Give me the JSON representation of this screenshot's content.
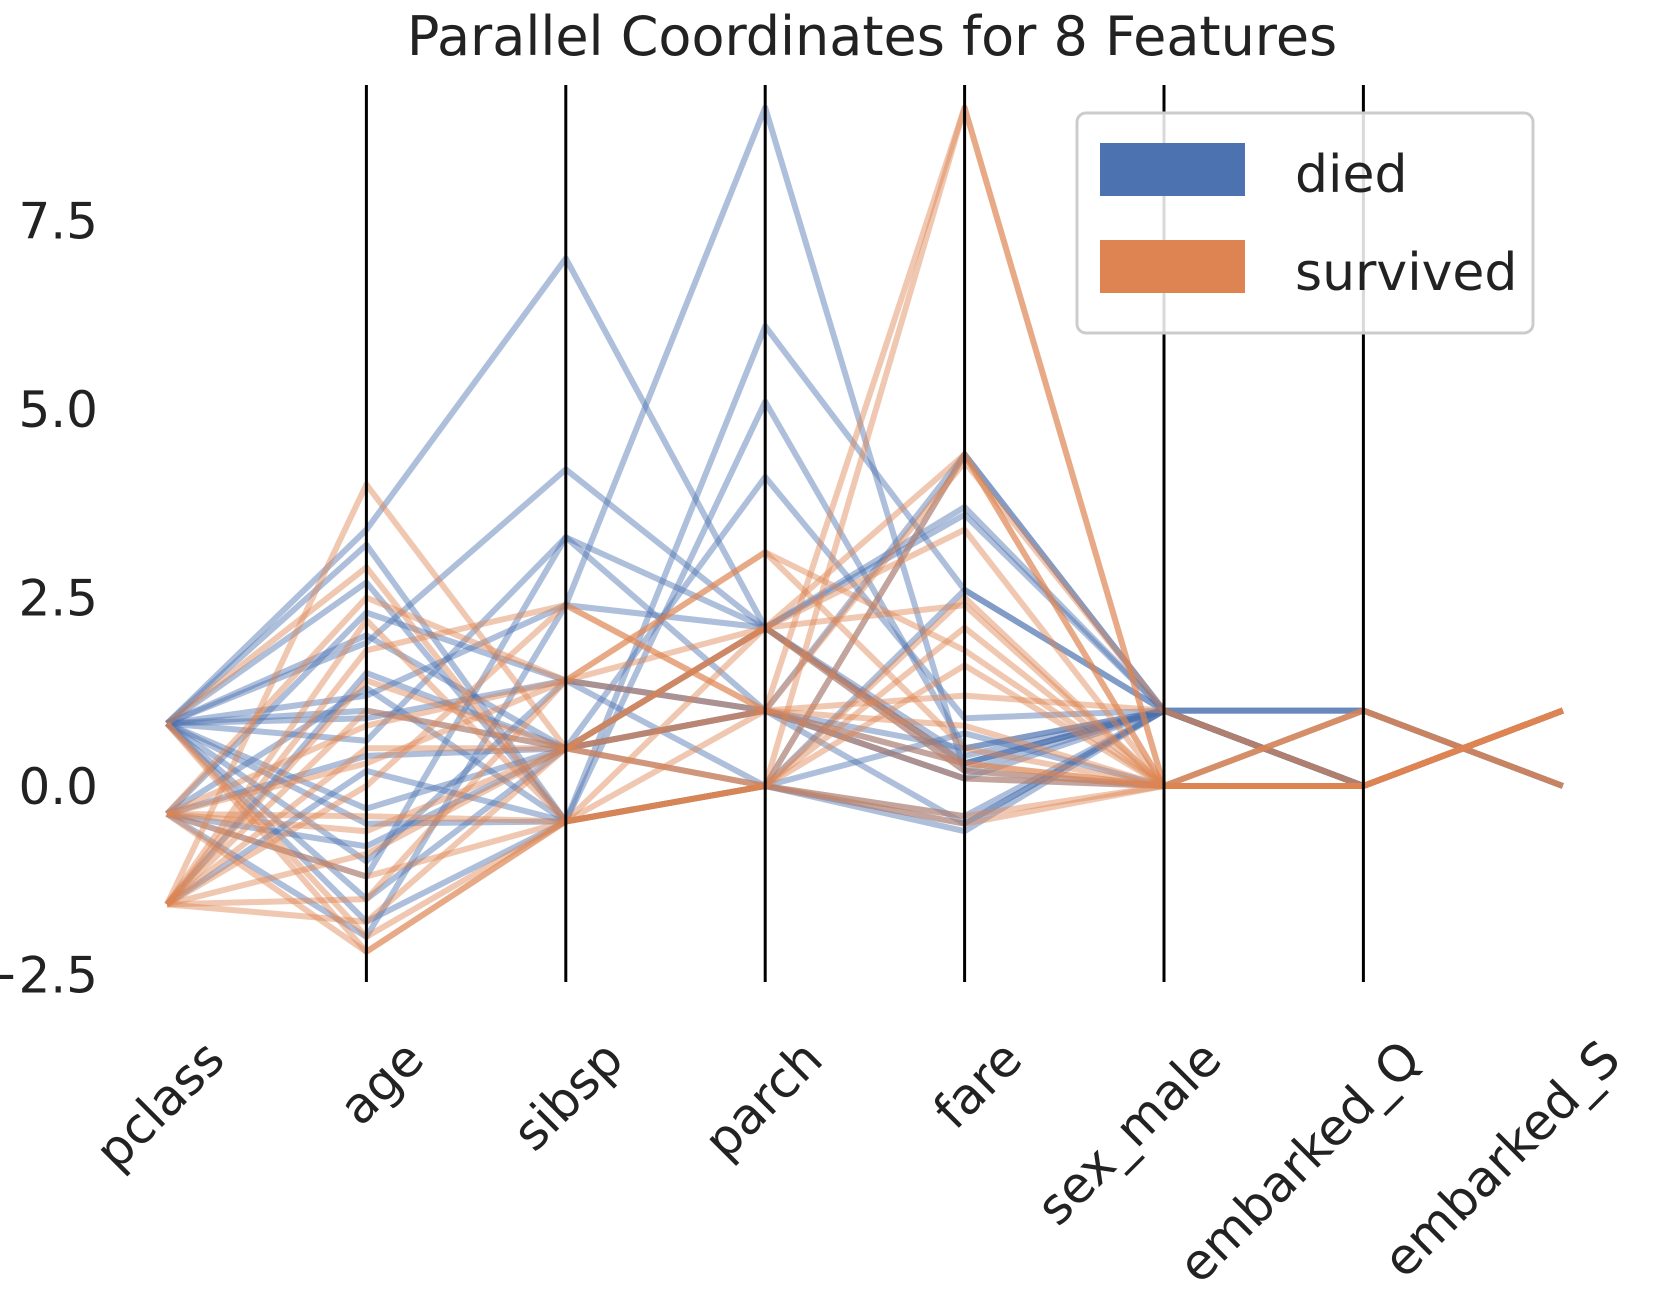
{
  "chart_data": {
    "type": "parallel_coordinates",
    "title": "Parallel Coordinates for 8 Features",
    "features": [
      "pclass",
      "age",
      "sibsp",
      "parch",
      "fare",
      "sex_male",
      "embarked_Q",
      "embarked_S"
    ],
    "ylim": [
      -2.6,
      9.3
    ],
    "yticks": [
      -2.5,
      0.0,
      2.5,
      5.0,
      7.5
    ],
    "ytick_labels": [
      "−2.5",
      "0.0",
      "2.5",
      "5.0",
      "7.5"
    ],
    "legend": {
      "position": "top-right",
      "entries": [
        {
          "label": "died",
          "color": "#4C72B0"
        },
        {
          "label": "survived",
          "color": "#DD8452"
        }
      ]
    },
    "colors": {
      "died": "#4C72B0",
      "survived": "#DD8452"
    },
    "series": [
      {
        "name": "died",
        "lines": [
          [
            0.83,
            3.4,
            7.0,
            2.1,
            0.3,
            1.0,
            0.0,
            1.0
          ],
          [
            0.83,
            1.9,
            4.2,
            2.1,
            3.6,
            1.0,
            0.0,
            1.0
          ],
          [
            0.83,
            0.6,
            3.3,
            1.0,
            0.5,
            1.0,
            1.0,
            0.0
          ],
          [
            -0.37,
            -1.2,
            3.3,
            2.1,
            0.2,
            1.0,
            0.0,
            1.0
          ],
          [
            0.83,
            1.2,
            2.4,
            2.1,
            0.3,
            1.0,
            0.0,
            1.0
          ],
          [
            -0.37,
            0.4,
            0.5,
            2.1,
            3.7,
            1.0,
            0.0,
            1.0
          ],
          [
            0.83,
            -0.3,
            0.5,
            1.0,
            0.1,
            1.0,
            1.0,
            0.0
          ],
          [
            -1.57,
            1.5,
            0.5,
            0.0,
            -0.6,
            1.0,
            0.0,
            1.0
          ],
          [
            0.83,
            2.7,
            -0.47,
            5.1,
            0.5,
            1.0,
            0.0,
            1.0
          ],
          [
            -0.37,
            -0.8,
            0.5,
            4.1,
            0.9,
            1.0,
            0.0,
            1.0
          ],
          [
            0.83,
            -1.8,
            -0.47,
            0.0,
            -0.5,
            1.0,
            0.0,
            1.0
          ],
          [
            0.83,
            0.9,
            1.4,
            1.0,
            4.4,
            1.0,
            0.0,
            1.0
          ],
          [
            -0.37,
            -2.0,
            2.4,
            9.0,
            0.2,
            0.0,
            1.0,
            0.0
          ],
          [
            0.83,
            3.2,
            -0.47,
            6.1,
            2.6,
            1.0,
            0.0,
            1.0
          ],
          [
            0.83,
            1.0,
            0.5,
            1.0,
            0.1,
            0.0,
            0.0,
            1.0
          ],
          [
            -0.37,
            2.3,
            1.4,
            0.0,
            2.6,
            1.0,
            0.0,
            1.0
          ],
          [
            0.83,
            -1.5,
            0.5,
            2.1,
            0.4,
            1.0,
            0.0,
            1.0
          ],
          [
            -1.57,
            0.2,
            -0.47,
            0.0,
            4.4,
            1.0,
            0.0,
            1.0
          ],
          [
            0.83,
            2.0,
            0.5,
            1.0,
            -0.5,
            1.0,
            1.0,
            0.0
          ],
          [
            0.83,
            -0.5,
            -0.47,
            0.0,
            -0.4,
            1.0,
            0.0,
            1.0
          ],
          [
            -0.37,
            1.3,
            -0.47,
            0.0,
            0.7,
            0.0,
            0.0,
            1.0
          ],
          [
            0.83,
            -1.0,
            1.4,
            1.0,
            0.3,
            1.0,
            0.0,
            1.0
          ]
        ]
      },
      {
        "name": "survived",
        "lines": [
          [
            -1.57,
            4.0,
            0.5,
            1.0,
            0.3,
            0.0,
            0.0,
            1.0
          ],
          [
            -1.57,
            -1.5,
            1.4,
            2.1,
            4.4,
            0.0,
            0.0,
            1.0
          ],
          [
            -0.37,
            -2.2,
            -0.47,
            0.0,
            9.0,
            0.0,
            0.0,
            1.0
          ],
          [
            -1.57,
            0.5,
            0.5,
            1.0,
            9.0,
            0.0,
            1.0,
            0.0
          ],
          [
            -0.37,
            2.5,
            1.4,
            3.1,
            0.5,
            0.0,
            0.0,
            1.0
          ],
          [
            -1.57,
            -0.9,
            0.5,
            2.1,
            2.4,
            0.0,
            0.0,
            1.0
          ],
          [
            0.83,
            -2.0,
            -0.47,
            0.0,
            1.6,
            0.0,
            1.0,
            0.0
          ],
          [
            -1.57,
            1.8,
            2.4,
            1.0,
            4.3,
            1.0,
            0.0,
            1.0
          ],
          [
            -0.37,
            -0.4,
            -0.47,
            2.1,
            0.3,
            0.0,
            0.0,
            1.0
          ],
          [
            -1.57,
            1.0,
            0.5,
            0.0,
            2.1,
            0.0,
            0.0,
            1.0
          ],
          [
            -0.37,
            0.3,
            1.4,
            1.0,
            0.1,
            0.0,
            0.0,
            1.0
          ],
          [
            -1.57,
            -1.8,
            0.5,
            2.1,
            3.4,
            0.0,
            0.0,
            1.0
          ],
          [
            0.83,
            2.9,
            -0.47,
            0.0,
            -0.4,
            0.0,
            0.0,
            1.0
          ],
          [
            -1.57,
            0.0,
            2.4,
            1.0,
            1.2,
            1.0,
            0.0,
            1.0
          ],
          [
            -0.37,
            -1.2,
            -0.47,
            1.0,
            0.8,
            0.0,
            1.0,
            0.0
          ],
          [
            -1.57,
            2.2,
            -0.47,
            0.0,
            2.5,
            0.0,
            0.0,
            1.0
          ],
          [
            -0.37,
            -0.6,
            0.5,
            2.1,
            0.2,
            0.0,
            0.0,
            1.0
          ],
          [
            -1.57,
            1.4,
            0.5,
            0.0,
            4.4,
            0.0,
            0.0,
            1.0
          ],
          [
            0.83,
            -2.2,
            -0.47,
            0.0,
            -0.5,
            0.0,
            0.0,
            1.0
          ],
          [
            -0.37,
            0.8,
            1.4,
            3.1,
            1.8,
            0.0,
            0.0,
            1.0
          ]
        ]
      }
    ]
  }
}
